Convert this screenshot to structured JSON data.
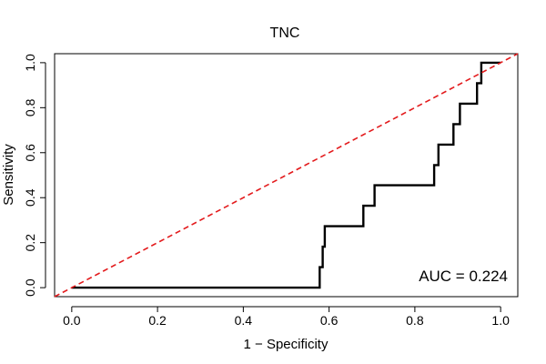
{
  "chart_data": {
    "type": "line",
    "title": "TNC",
    "xlabel": "1 − Specificity",
    "ylabel": "Sensitivity",
    "xlim": [
      -0.04,
      1.04
    ],
    "ylim": [
      -0.04,
      1.04
    ],
    "xticks": [
      "0.0",
      "0.2",
      "0.4",
      "0.6",
      "0.8",
      "1.0"
    ],
    "yticks": [
      "0.0",
      "0.2",
      "0.4",
      "0.6",
      "0.8",
      "1.0"
    ],
    "grid": false,
    "legend": "none",
    "annotation": "AUC = 0.224",
    "series": [
      {
        "role": "roc-curve",
        "color": "#000000",
        "style": "solid",
        "x": [
          0.0,
          0.578,
          0.578,
          0.585,
          0.585,
          0.59,
          0.59,
          0.68,
          0.68,
          0.706,
          0.706,
          0.845,
          0.845,
          0.855,
          0.855,
          0.89,
          0.89,
          0.905,
          0.905,
          0.945,
          0.945,
          0.955,
          0.955,
          0.955,
          1.0
        ],
        "y": [
          0.0,
          0.0,
          0.091,
          0.091,
          0.182,
          0.182,
          0.273,
          0.273,
          0.364,
          0.364,
          0.455,
          0.455,
          0.545,
          0.545,
          0.636,
          0.636,
          0.727,
          0.727,
          0.818,
          0.818,
          0.909,
          0.909,
          0.955,
          1.0,
          1.0
        ]
      },
      {
        "role": "reference-diagonal",
        "color": "#e31a1c",
        "style": "dashed",
        "x": [
          -0.04,
          1.04
        ],
        "y": [
          -0.04,
          1.04
        ]
      }
    ]
  }
}
